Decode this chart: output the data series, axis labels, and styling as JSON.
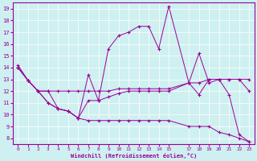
{
  "xlabel": "Windchill (Refroidissement éolien,°C)",
  "bg_color": "#cff0f0",
  "line_color": "#990099",
  "xlim": [
    -0.5,
    23.5
  ],
  "ylim": [
    7.5,
    19.5
  ],
  "xticks": [
    0,
    1,
    2,
    3,
    4,
    5,
    6,
    7,
    8,
    9,
    10,
    11,
    12,
    13,
    14,
    15,
    17,
    18,
    19,
    20,
    21,
    22,
    23
  ],
  "yticks": [
    8,
    9,
    10,
    11,
    12,
    13,
    14,
    15,
    16,
    17,
    18,
    19
  ],
  "series_top": {
    "x": [
      0,
      1,
      2,
      3,
      4,
      5,
      6,
      7,
      8,
      9,
      10,
      11,
      12,
      13,
      14,
      15,
      17,
      18,
      19,
      20,
      21,
      22,
      23
    ],
    "y": [
      14.2,
      12.9,
      12.0,
      12.0,
      10.5,
      10.3,
      9.7,
      13.4,
      11.2,
      15.6,
      16.7,
      17.0,
      17.5,
      17.5,
      15.6,
      19.2,
      12.7,
      15.2,
      12.7,
      13.0,
      11.7,
      8.3,
      7.7
    ]
  },
  "series_mid_upper": {
    "x": [
      0,
      1,
      2,
      3,
      4,
      5,
      6,
      7,
      8,
      9,
      10,
      11,
      12,
      13,
      14,
      15,
      17,
      18,
      19,
      20,
      21,
      22,
      23
    ],
    "y": [
      14.0,
      12.9,
      12.0,
      12.0,
      12.0,
      12.0,
      12.0,
      12.0,
      12.0,
      12.0,
      12.2,
      12.2,
      12.2,
      12.2,
      12.2,
      12.2,
      12.7,
      12.7,
      13.0,
      13.0,
      13.0,
      13.0,
      13.0
    ]
  },
  "series_mid_lower": {
    "x": [
      0,
      1,
      2,
      3,
      4,
      5,
      6,
      7,
      8,
      9,
      10,
      11,
      12,
      13,
      14,
      15,
      17,
      18,
      19,
      20,
      21,
      22,
      23
    ],
    "y": [
      14.0,
      12.9,
      12.0,
      11.0,
      10.5,
      10.3,
      9.7,
      11.2,
      11.2,
      11.5,
      11.8,
      12.0,
      12.0,
      12.0,
      12.0,
      12.0,
      12.7,
      11.7,
      13.0,
      13.0,
      13.0,
      13.0,
      12.0
    ]
  },
  "series_bottom": {
    "x": [
      0,
      1,
      2,
      3,
      4,
      5,
      6,
      7,
      8,
      9,
      10,
      11,
      12,
      13,
      14,
      15,
      17,
      18,
      19,
      20,
      21,
      22,
      23
    ],
    "y": [
      14.0,
      12.9,
      12.0,
      11.0,
      10.5,
      10.3,
      9.7,
      9.5,
      9.5,
      9.5,
      9.5,
      9.5,
      9.5,
      9.5,
      9.5,
      9.5,
      9.0,
      9.0,
      9.0,
      8.5,
      8.3,
      8.0,
      7.7
    ]
  }
}
